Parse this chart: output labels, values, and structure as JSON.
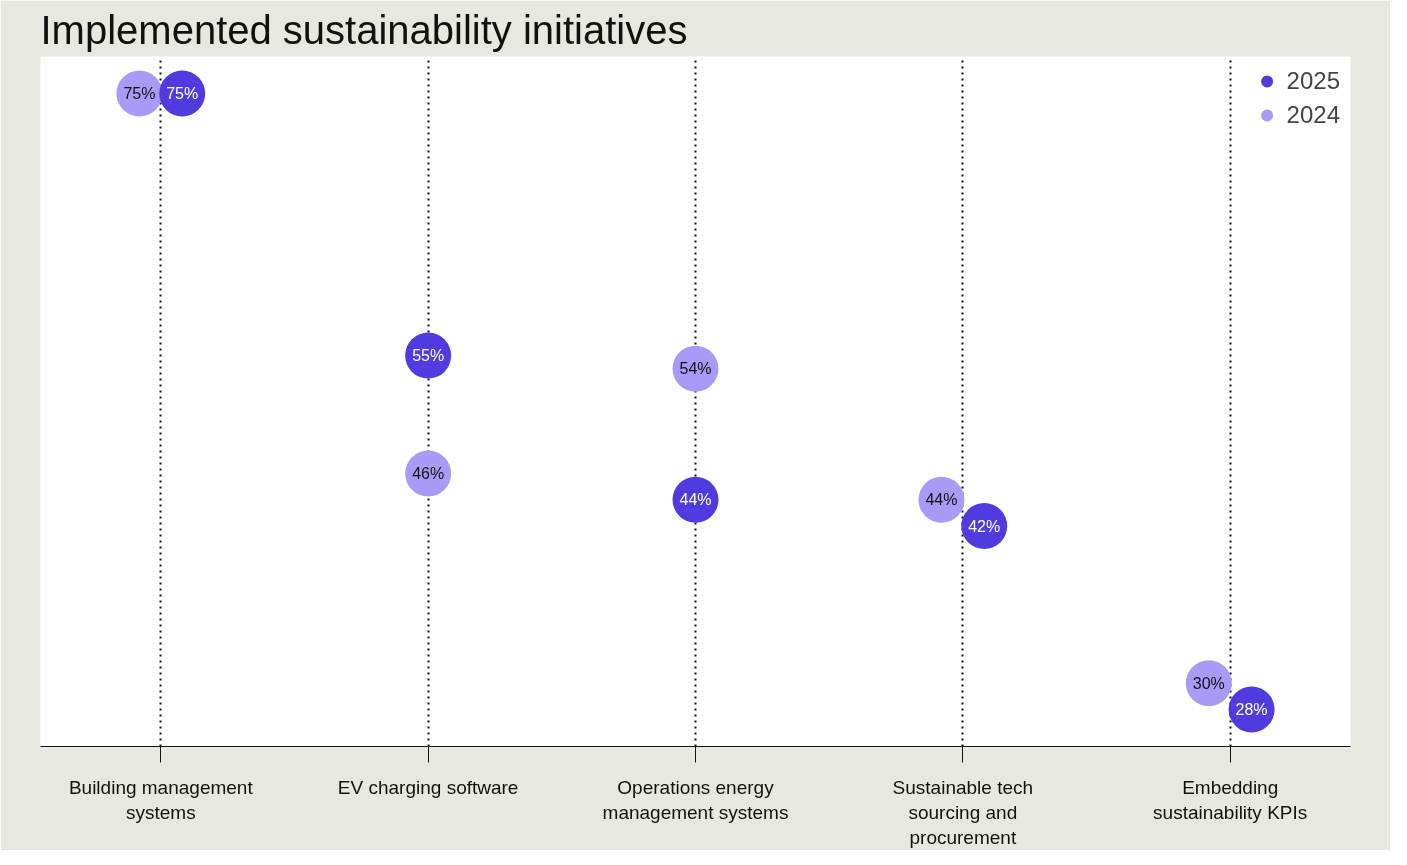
{
  "chart_data": {
    "type": "scatter",
    "title": "Implemented sustainability initiatives",
    "categories": [
      "Building management systems",
      "EV charging software",
      "Operations energy management systems",
      "Sustainable tech sourcing and procurement",
      "Embedding sustainability KPIs"
    ],
    "series": [
      {
        "name": "2025",
        "color": "#4f3be0",
        "values": [
          75,
          55,
          44,
          42,
          28
        ],
        "value_labels": [
          "75%",
          "55%",
          "44%",
          "42%",
          "28%"
        ]
      },
      {
        "name": "2024",
        "color": "#a99af8",
        "values": [
          75,
          46,
          54,
          44,
          30
        ],
        "value_labels": [
          "75%",
          "46%",
          "54%",
          "44%",
          "30%"
        ]
      }
    ],
    "marker": "circle",
    "grid": "x",
    "legend": "top right",
    "tick_labels": "x"
  }
}
